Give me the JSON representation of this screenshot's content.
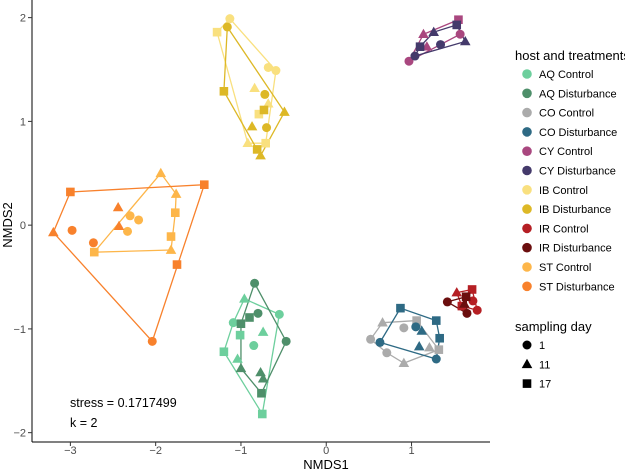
{
  "chart_data": {
    "type": "scatter",
    "xlabel": "NMDS1",
    "ylabel": "NMDS2",
    "xlim": [
      -3.45,
      1.92
    ],
    "ylim": [
      -2.09,
      2.17
    ],
    "xticks": [
      -3,
      -2,
      -1,
      0,
      1
    ],
    "yticks": [
      -2,
      -1,
      0,
      1,
      2
    ],
    "grid": false,
    "annotations": [
      {
        "text": "stress = 0.1717499",
        "x": -3.0,
        "y": -1.72
      },
      {
        "text": "k = 2",
        "x": -3.0,
        "y": -1.91
      }
    ],
    "legend": {
      "placement": "right",
      "color_title": "host and treatments",
      "shape_title": "sampling day",
      "shapes": [
        {
          "label": "1",
          "shape": "circle"
        },
        {
          "label": "11",
          "shape": "triangle"
        },
        {
          "label": "17",
          "shape": "square"
        }
      ]
    },
    "series": [
      {
        "name": "AQ Control",
        "color": "#6DCF9D",
        "points": [
          {
            "x": -0.96,
            "y": -0.71,
            "day": "11"
          },
          {
            "x": -0.55,
            "y": -0.86,
            "day": "1"
          },
          {
            "x": -1.09,
            "y": -0.94,
            "day": "1"
          },
          {
            "x": -1.01,
            "y": -1.06,
            "day": "17"
          },
          {
            "x": -0.74,
            "y": -1.03,
            "day": "11"
          },
          {
            "x": -0.85,
            "y": -1.16,
            "day": "1"
          },
          {
            "x": -1.2,
            "y": -1.22,
            "day": "17"
          },
          {
            "x": -1.04,
            "y": -1.29,
            "day": "11"
          },
          {
            "x": -0.75,
            "y": -1.82,
            "day": "17"
          }
        ]
      },
      {
        "name": "AQ Disturbance",
        "color": "#4E8F6A",
        "points": [
          {
            "x": -0.84,
            "y": -0.56,
            "day": "1"
          },
          {
            "x": -0.9,
            "y": -0.89,
            "day": "17"
          },
          {
            "x": -0.8,
            "y": -0.85,
            "day": "1"
          },
          {
            "x": -1.0,
            "y": -0.95,
            "day": "17"
          },
          {
            "x": -0.47,
            "y": -1.12,
            "day": "1"
          },
          {
            "x": -1.0,
            "y": -1.38,
            "day": "11"
          },
          {
            "x": -0.77,
            "y": -1.42,
            "day": "11"
          },
          {
            "x": -0.74,
            "y": -1.48,
            "day": "11"
          },
          {
            "x": -0.76,
            "y": -1.62,
            "day": "17"
          }
        ]
      },
      {
        "name": "CO Control",
        "color": "#ABABAB",
        "points": [
          {
            "x": 0.66,
            "y": -0.94,
            "day": "11"
          },
          {
            "x": 1.06,
            "y": -0.92,
            "day": "17"
          },
          {
            "x": 0.91,
            "y": -0.99,
            "day": "1"
          },
          {
            "x": 0.52,
            "y": -1.1,
            "day": "1"
          },
          {
            "x": 1.21,
            "y": -1.18,
            "day": "11"
          },
          {
            "x": 1.32,
            "y": -1.2,
            "day": "17"
          },
          {
            "x": 0.71,
            "y": -1.23,
            "day": "1"
          },
          {
            "x": 0.91,
            "y": -1.33,
            "day": "11"
          }
        ]
      },
      {
        "name": "CO Disturbance",
        "color": "#2E6A84",
        "points": [
          {
            "x": 0.87,
            "y": -0.8,
            "day": "17"
          },
          {
            "x": 1.29,
            "y": -0.92,
            "day": "17"
          },
          {
            "x": 1.05,
            "y": -0.98,
            "day": "1"
          },
          {
            "x": 1.12,
            "y": -1.02,
            "day": "11"
          },
          {
            "x": 1.33,
            "y": -1.09,
            "day": "17"
          },
          {
            "x": 1.09,
            "y": -1.17,
            "day": "11"
          },
          {
            "x": 0.63,
            "y": -1.13,
            "day": "1"
          },
          {
            "x": 1.29,
            "y": -1.29,
            "day": "1"
          }
        ]
      },
      {
        "name": "CY Control",
        "color": "#A9477F",
        "points": [
          {
            "x": 0.97,
            "y": 1.58,
            "day": "1"
          },
          {
            "x": 1.55,
            "y": 1.98,
            "day": "17"
          },
          {
            "x": 1.57,
            "y": 1.84,
            "day": "1"
          },
          {
            "x": 1.14,
            "y": 1.84,
            "day": "11"
          },
          {
            "x": 1.18,
            "y": 1.72,
            "day": "11"
          }
        ]
      },
      {
        "name": "CY Disturbance",
        "color": "#443A6B",
        "points": [
          {
            "x": 1.26,
            "y": 1.86,
            "day": "11"
          },
          {
            "x": 1.63,
            "y": 1.77,
            "day": "11"
          },
          {
            "x": 1.34,
            "y": 1.74,
            "day": "1"
          },
          {
            "x": 1.1,
            "y": 1.72,
            "day": "17"
          },
          {
            "x": 1.04,
            "y": 1.63,
            "day": "1"
          },
          {
            "x": 1.53,
            "y": 1.93,
            "day": "17"
          }
        ]
      },
      {
        "name": "IB Control",
        "color": "#F9E07F",
        "points": [
          {
            "x": -1.13,
            "y": 1.99,
            "day": "1"
          },
          {
            "x": -1.28,
            "y": 1.86,
            "day": "17"
          },
          {
            "x": -0.68,
            "y": 1.52,
            "day": "1"
          },
          {
            "x": -0.59,
            "y": 1.49,
            "day": "1"
          },
          {
            "x": -0.84,
            "y": 1.32,
            "day": "11"
          },
          {
            "x": -0.68,
            "y": 1.17,
            "day": "11"
          },
          {
            "x": -0.79,
            "y": 1.07,
            "day": "17"
          },
          {
            "x": -0.92,
            "y": 0.79,
            "day": "11"
          },
          {
            "x": -0.71,
            "y": 0.79,
            "day": "17"
          }
        ]
      },
      {
        "name": "IB Disturbance",
        "color": "#DDB826",
        "points": [
          {
            "x": -1.16,
            "y": 1.91,
            "day": "1"
          },
          {
            "x": -1.2,
            "y": 1.29,
            "day": "17"
          },
          {
            "x": -0.72,
            "y": 1.26,
            "day": "1"
          },
          {
            "x": -0.73,
            "y": 1.11,
            "day": "17"
          },
          {
            "x": -0.49,
            "y": 1.09,
            "day": "11"
          },
          {
            "x": -0.87,
            "y": 0.95,
            "day": "11"
          },
          {
            "x": -0.7,
            "y": 0.94,
            "day": "1"
          },
          {
            "x": -0.81,
            "y": 0.73,
            "day": "17"
          },
          {
            "x": -0.77,
            "y": 0.67,
            "day": "11"
          }
        ]
      },
      {
        "name": "IR Control",
        "color": "#B51F24",
        "points": [
          {
            "x": 1.71,
            "y": -0.62,
            "day": "17"
          },
          {
            "x": 1.53,
            "y": -0.65,
            "day": "11"
          },
          {
            "x": 1.72,
            "y": -0.73,
            "day": "1"
          },
          {
            "x": 1.77,
            "y": -0.82,
            "day": "1"
          },
          {
            "x": 1.59,
            "y": -0.78,
            "day": "17"
          }
        ]
      },
      {
        "name": "IR Disturbance",
        "color": "#6B0E0E",
        "points": [
          {
            "x": 1.42,
            "y": -0.74,
            "day": "1"
          },
          {
            "x": 1.65,
            "y": -0.85,
            "day": "1"
          },
          {
            "x": 1.64,
            "y": -0.69,
            "day": "17"
          },
          {
            "x": 1.62,
            "y": -0.76,
            "day": "11"
          }
        ]
      },
      {
        "name": "ST Control",
        "color": "#FDB64A",
        "points": [
          {
            "x": -1.94,
            "y": 0.5,
            "day": "11"
          },
          {
            "x": -1.76,
            "y": 0.3,
            "day": "11"
          },
          {
            "x": -1.77,
            "y": 0.12,
            "day": "17"
          },
          {
            "x": -1.82,
            "y": -0.11,
            "day": "17"
          },
          {
            "x": -1.82,
            "y": -0.24,
            "day": "11"
          },
          {
            "x": -2.72,
            "y": -0.26,
            "day": "17"
          },
          {
            "x": -2.3,
            "y": 0.09,
            "day": "1"
          },
          {
            "x": -2.2,
            "y": 0.05,
            "day": "1"
          },
          {
            "x": -2.33,
            "y": -0.06,
            "day": "1"
          }
        ]
      },
      {
        "name": "ST Disturbance",
        "color": "#F8812C",
        "points": [
          {
            "x": -3.0,
            "y": 0.32,
            "day": "17"
          },
          {
            "x": -1.43,
            "y": 0.39,
            "day": "17"
          },
          {
            "x": -3.2,
            "y": -0.07,
            "day": "11"
          },
          {
            "x": -2.04,
            "y": -1.12,
            "day": "1"
          },
          {
            "x": -1.75,
            "y": -0.38,
            "day": "17"
          },
          {
            "x": -2.98,
            "y": -0.05,
            "day": "1"
          },
          {
            "x": -2.73,
            "y": -0.17,
            "day": "1"
          },
          {
            "x": -2.44,
            "y": 0.17,
            "day": "11"
          },
          {
            "x": -2.43,
            "y": -0.01,
            "day": "11"
          }
        ]
      }
    ]
  }
}
